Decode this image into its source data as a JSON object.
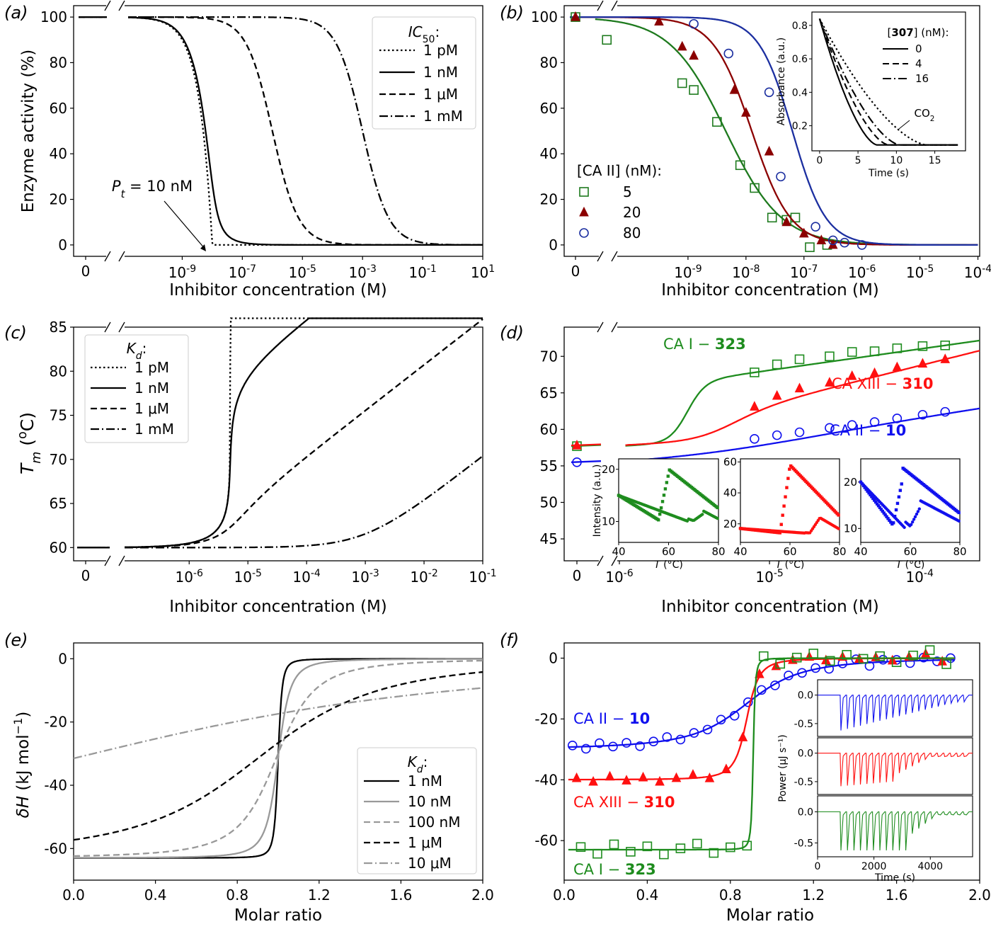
{
  "panels": [
    {
      "label": "(a)",
      "type": "line",
      "xlabel": "Inhibitor concentration (M)",
      "ylabel": "Enzyme activity (%)",
      "xscale": "log with broken zero",
      "xlim_log10": [
        -10.8,
        1
      ],
      "ylim": [
        -5,
        105
      ],
      "xticks": [
        {
          "t": "0",
          "v": "zero"
        },
        {
          "t": "10",
          "e": "-9",
          "v": -9
        },
        {
          "t": "10",
          "e": "-7",
          "v": -7
        },
        {
          "t": "10",
          "e": "-5",
          "v": -5
        },
        {
          "t": "10",
          "e": "-3",
          "v": -3
        },
        {
          "t": "10",
          "e": "-1",
          "v": -1
        },
        {
          "t": "10",
          "e": "1",
          "v": 1
        }
      ],
      "yticks": [
        "0",
        "20",
        "40",
        "60",
        "80",
        "100"
      ],
      "legend": {
        "title": "IC50:",
        "entries": [
          "1 pM",
          "1 nM",
          "1 μM",
          "1 mM"
        ],
        "placement": "top-right"
      },
      "series": [
        {
          "name": "1 pM",
          "style": "dotted",
          "model": "tight-binding",
          "Pt_log10": -8,
          "ic50_log10": -12
        },
        {
          "name": "1 nM",
          "style": "solid",
          "model": "tight-binding",
          "Pt_log10": -8,
          "ic50_log10": -9
        },
        {
          "name": "1 μM",
          "style": "dashed",
          "model": "hill",
          "ic50_log10": -6
        },
        {
          "name": "1 mM",
          "style": "dashdot",
          "model": "hill",
          "ic50_log10": -3
        }
      ],
      "annotation": "P_t = 10 nM"
    },
    {
      "label": "(b)",
      "type": "scatter+line",
      "xlabel": "Inhibitor concentration (M)",
      "xscale": "log with broken zero",
      "xlim_log10": [
        -10,
        -4
      ],
      "ylim": [
        -5,
        105
      ],
      "xticks": [
        {
          "t": "0",
          "v": "zero"
        },
        {
          "t": "10",
          "e": "-9",
          "v": -9
        },
        {
          "t": "10",
          "e": "-8",
          "v": -8
        },
        {
          "t": "10",
          "e": "-7",
          "v": -7
        },
        {
          "t": "10",
          "e": "-6",
          "v": -6
        },
        {
          "t": "10",
          "e": "-5",
          "v": -5
        },
        {
          "t": "10",
          "e": "-4",
          "v": -4
        }
      ],
      "yticks": [
        "0",
        "20",
        "40",
        "60",
        "80",
        "100"
      ],
      "legend": {
        "title": "[CA II] (nM):",
        "entries": [
          "5",
          "20",
          "80"
        ],
        "placement": "lower-left"
      },
      "series": [
        {
          "name": "5",
          "color": "#1e7a1e",
          "marker": "square-open",
          "ic50_log10": -8.35,
          "slope": 0.9,
          "points": [
            [
              -10.4,
              90
            ],
            [
              -9.1,
              71
            ],
            [
              -8.9,
              68
            ],
            [
              -8.5,
              54
            ],
            [
              -8.1,
              35
            ],
            [
              -7.85,
              25
            ],
            [
              -7.55,
              12
            ],
            [
              -7.3,
              11
            ],
            [
              -7.15,
              12
            ],
            [
              -6.9,
              -1
            ],
            [
              -6.6,
              0
            ]
          ]
        },
        {
          "name": "20",
          "color": "#8b0000",
          "marker": "triangle-filled",
          "ic50_log10": -7.9,
          "slope": 1.3,
          "points": [
            [
              -9.5,
              98
            ],
            [
              -9.1,
              87
            ],
            [
              -8.9,
              83
            ],
            [
              -8.2,
              68
            ],
            [
              -8.0,
              58
            ],
            [
              -7.6,
              41
            ],
            [
              -7.3,
              10
            ],
            [
              -7.0,
              5
            ],
            [
              -6.7,
              2
            ],
            [
              -6.5,
              0
            ]
          ]
        },
        {
          "name": "80",
          "color": "#1c2fa0",
          "marker": "circle-open",
          "ic50_log10": -7.2,
          "slope": 1.5,
          "points": [
            [
              -8.9,
              97
            ],
            [
              -8.3,
              84
            ],
            [
              -7.6,
              67
            ],
            [
              -7.4,
              30
            ],
            [
              -6.8,
              8
            ],
            [
              -6.5,
              2
            ],
            [
              -6.3,
              1
            ],
            [
              -6.0,
              0
            ]
          ]
        }
      ],
      "zero_points": [
        {
          "series": "5",
          "y": 100
        },
        {
          "series": "20",
          "y": 100
        }
      ],
      "inset": {
        "xlabel": "Time (s)",
        "ylabel": "Absorbance (a.u.)",
        "xlim": [
          -1,
          19
        ],
        "ylim": [
          0.05,
          0.88
        ],
        "xticks": [
          "0",
          "5",
          "10",
          "15"
        ],
        "yticks": [
          "0.2",
          "0.4",
          "0.6",
          "0.8"
        ],
        "legend_title_pre": "[",
        "legend_title_bold": "307",
        "legend_title_post": "] (nM):",
        "legend_entries": [
          "0",
          "4",
          "16"
        ],
        "annotation": "CO2",
        "curves": [
          {
            "name": "0",
            "style": "solid",
            "end_time": 7.5
          },
          {
            "name": "4",
            "style": "dashed",
            "end_time": 9
          },
          {
            "name": "16",
            "style": "dashdot",
            "end_time": 10.5
          },
          {
            "name": "CO2",
            "style": "dotted",
            "end_time": 14
          }
        ]
      }
    },
    {
      "label": "(c)",
      "type": "line",
      "xlabel": "Inhibitor concentration (M)",
      "ylabel": "T_m (°C)",
      "xscale": "log with broken zero",
      "xlim_log10": [
        -7.1,
        -1
      ],
      "ylim": [
        58.5,
        85
      ],
      "xticks": [
        {
          "t": "0",
          "v": "zero"
        },
        {
          "t": "10",
          "e": "-6",
          "v": -6
        },
        {
          "t": "10",
          "e": "-5",
          "v": -5
        },
        {
          "t": "10",
          "e": "-4",
          "v": -4
        },
        {
          "t": "10",
          "e": "-3",
          "v": -3
        },
        {
          "t": "10",
          "e": "-2",
          "v": -2
        },
        {
          "t": "10",
          "e": "-1",
          "v": -1
        }
      ],
      "yticks": [
        "60",
        "65",
        "70",
        "75",
        "80",
        "85"
      ],
      "legend": {
        "title": "Kd:",
        "entries": [
          "1 pM",
          "1 nM",
          "1 μM",
          "1 mM"
        ],
        "placement": "top-left"
      },
      "series": [
        {
          "name": "1 pM",
          "style": "dotted",
          "kd_log10": -12
        },
        {
          "name": "1 nM",
          "style": "solid",
          "kd_log10": -9
        },
        {
          "name": "1 μM",
          "style": "dashed",
          "kd_log10": -6
        },
        {
          "name": "1 mM",
          "style": "dashdot",
          "kd_log10": -3
        }
      ]
    },
    {
      "label": "(d)",
      "type": "scatter+line",
      "xlabel": "Inhibitor concentration (M)",
      "xscale": "log with broken zero",
      "xlim_log10": [
        -6,
        -3.6
      ],
      "ylim": [
        42,
        74
      ],
      "xticks": [
        {
          "t": "0",
          "v": "zero"
        },
        {
          "t": "10",
          "e": "-6",
          "v": -6
        },
        {
          "t": "10",
          "e": "-5",
          "v": -5
        },
        {
          "t": "10",
          "e": "-4",
          "v": -4
        }
      ],
      "yticks": [
        "45",
        "50",
        "55",
        "60",
        "65",
        "70"
      ],
      "series": [
        {
          "name": "CA I − 323",
          "label_pre": "CA I − ",
          "label_bold": "323",
          "color": "#1e8c1e",
          "marker": "square-open",
          "zero_y": 57.7,
          "points": [
            [
              -5.1,
              67.8
            ],
            [
              -4.95,
              68.9
            ],
            [
              -4.8,
              69.6
            ],
            [
              -4.6,
              70.0
            ],
            [
              -4.45,
              70.6
            ],
            [
              -4.3,
              70.7
            ],
            [
              -4.15,
              71.1
            ],
            [
              -3.98,
              71.4
            ],
            [
              -3.83,
              71.5
            ]
          ]
        },
        {
          "name": "CA XIII − 310",
          "label_pre": "CA XIII − ",
          "label_bold": "310",
          "color": "#ff1010",
          "marker": "triangle-filled",
          "zero_y": 57.8,
          "points": [
            [
              -5.1,
              63.1
            ],
            [
              -4.95,
              64.6
            ],
            [
              -4.8,
              65.6
            ],
            [
              -4.6,
              66.4
            ],
            [
              -4.45,
              67.3
            ],
            [
              -4.3,
              67.7
            ],
            [
              -4.15,
              68.5
            ],
            [
              -3.98,
              69.0
            ],
            [
              -3.83,
              69.6
            ]
          ]
        },
        {
          "name": "CA II − 10",
          "label_pre": "CA II − ",
          "label_bold": "10",
          "color": "#1010ee",
          "marker": "circle-open",
          "zero_y": 55.5,
          "points": [
            [
              -5.1,
              58.7
            ],
            [
              -4.95,
              59.2
            ],
            [
              -4.8,
              59.6
            ],
            [
              -4.6,
              60.2
            ],
            [
              -4.45,
              60.6
            ],
            [
              -4.3,
              61.0
            ],
            [
              -4.15,
              61.5
            ],
            [
              -3.98,
              62.0
            ],
            [
              -3.83,
              62.4
            ]
          ]
        }
      ],
      "insets": [
        {
          "color": "#1e8c1e",
          "ylabel": "Intensity (a.u.)",
          "xlabel": "T (°C)",
          "xticks": [
            "40",
            "60",
            "80"
          ],
          "yticks": [
            "10",
            "20"
          ],
          "ylim": [
            6,
            22
          ]
        },
        {
          "color": "#ff1010",
          "xlabel": "T (°C)",
          "xticks": [
            "40",
            "60",
            "80"
          ],
          "yticks": [
            "20",
            "40",
            "60"
          ],
          "ylim": [
            8,
            62
          ]
        },
        {
          "color": "#1010ee",
          "xlabel": "T (°C)",
          "xticks": [
            "40",
            "60",
            "80"
          ],
          "yticks": [
            "10",
            "20"
          ],
          "ylim": [
            7,
            25
          ]
        }
      ]
    },
    {
      "label": "(e)",
      "type": "line",
      "xlabel": "Molar ratio",
      "ylabel": "δH (kJ mol⁻¹)",
      "xlim": [
        0,
        2
      ],
      "ylim": [
        -70,
        5
      ],
      "xticks": [
        "0.0",
        "0.4",
        "0.8",
        "1.2",
        "1.6",
        "2.0"
      ],
      "yticks": [
        "-60",
        "-40",
        "-20",
        "0"
      ],
      "legend": {
        "title": "Kd:",
        "entries": [
          "1 nM",
          "10 nM",
          "100 nM",
          "1 μM",
          "10 μM"
        ],
        "placement": "lower-right"
      },
      "series": [
        {
          "name": "1 nM",
          "color": "#000000",
          "style": "solid",
          "c": 10000
        },
        {
          "name": "10 nM",
          "color": "#999999",
          "style": "solid",
          "c": 1000
        },
        {
          "name": "100 nM",
          "color": "#999999",
          "style": "dashed",
          "c": 100
        },
        {
          "name": "1 μM",
          "color": "#000000",
          "style": "dashed",
          "c": 10
        },
        {
          "name": "10 μM",
          "color": "#999999",
          "style": "dashdot",
          "c": 1
        }
      ],
      "dH": -63
    },
    {
      "label": "(f)",
      "type": "scatter+line",
      "xlabel": "Molar ratio",
      "xlim": [
        0,
        2
      ],
      "ylim": [
        -73,
        5
      ],
      "xticks": [
        "0.0",
        "0.4",
        "0.8",
        "1.2",
        "1.6",
        "2.0"
      ],
      "yticks": [
        "-60",
        "-40",
        "-20",
        "0"
      ],
      "series": [
        {
          "name": "CA II − 10",
          "label_pre": "CA II − ",
          "label_bold": "10",
          "color": "#1010ee",
          "marker": "circle-open",
          "dH": -30,
          "c": 40,
          "n": 0.9
        },
        {
          "name": "CA XIII − 310",
          "label_pre": "CA XIII − ",
          "label_bold": "310",
          "color": "#ff1010",
          "marker": "triangle-filled",
          "dH": -40,
          "c": 800,
          "n": 0.88
        },
        {
          "name": "CA I − 323",
          "label_pre": "CA I − ",
          "label_bold": "323",
          "color": "#1e8c1e",
          "marker": "square-open",
          "dH": -63,
          "c": 30000,
          "n": 0.91
        }
      ],
      "inset": {
        "xlabel": "Time (s)",
        "ylabel": "Power (μJ s⁻¹)",
        "xticks": [
          "0",
          "2000",
          "4000"
        ],
        "xlim": [
          0,
          5500
        ],
        "yticks": [
          "0.0",
          "-0.5"
        ],
        "traces": [
          "#1010ee",
          "#ff1010",
          "#1e8c1e"
        ]
      }
    }
  ]
}
